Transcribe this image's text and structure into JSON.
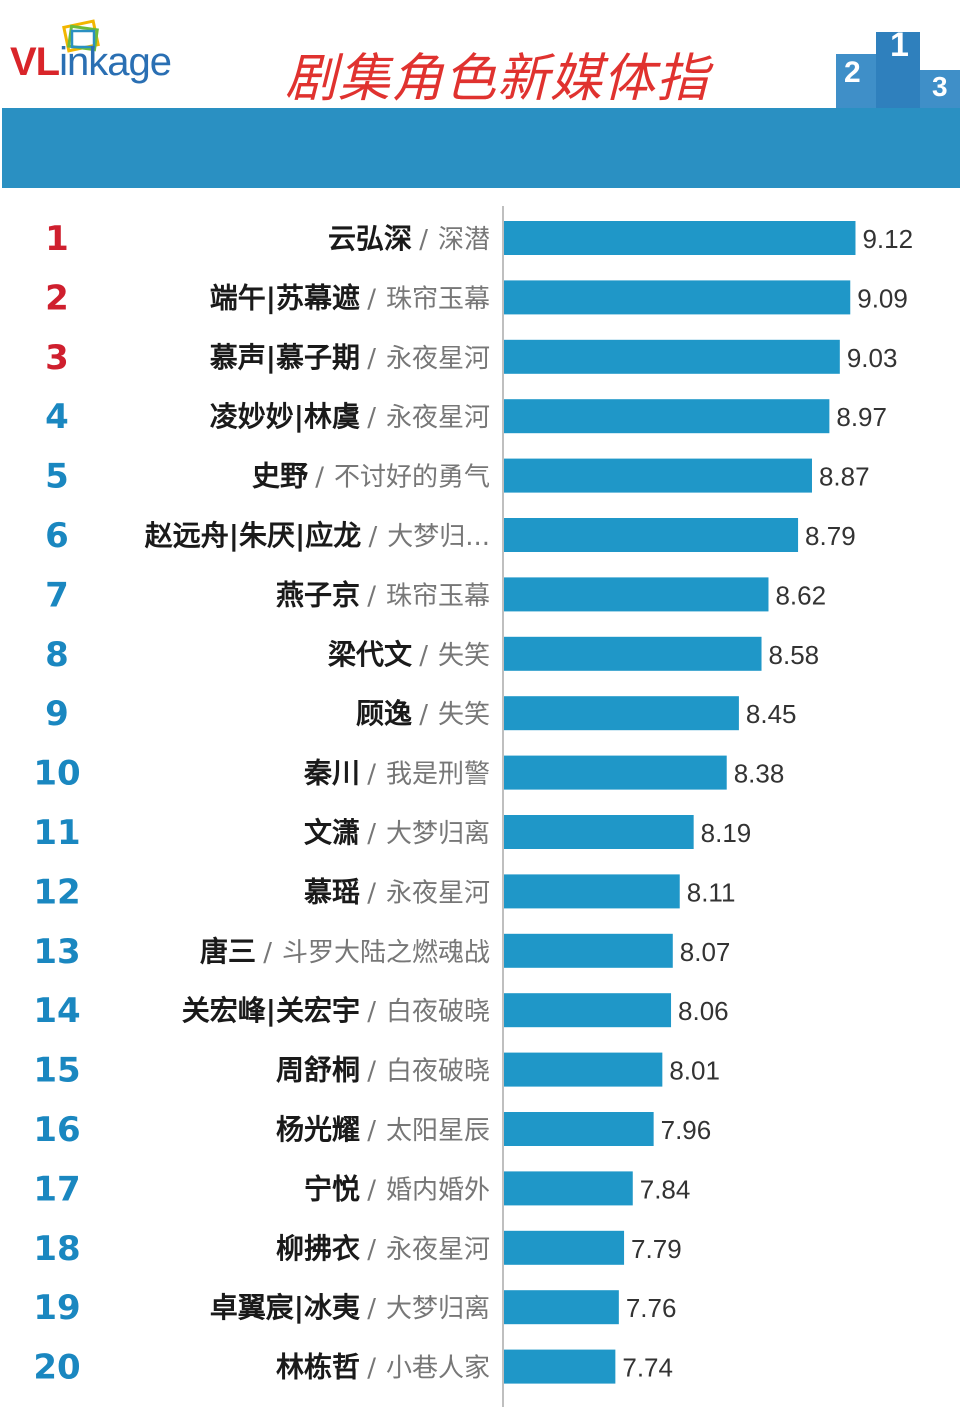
{
  "brand": {
    "logo_prefix": "VL",
    "logo_rest": "inkage"
  },
  "title": "剧集角色新媒体指",
  "colors": {
    "bar": "#1f97c8",
    "banner": "#2a90c2",
    "rank_top3": "#cf1f2e",
    "rank_other": "#1a87c0",
    "title": "#e0322f"
  },
  "chart_data": {
    "type": "bar",
    "orientation": "horizontal",
    "xlim": [
      7.1,
      9.3
    ],
    "rows": [
      {
        "rank": "1",
        "name": "云弘深",
        "show": "深潜",
        "value": 9.12,
        "value_label": "9.12"
      },
      {
        "rank": "2",
        "name": "端午|苏幕遮",
        "show": "珠帘玉幕",
        "value": 9.09,
        "value_label": "9.09"
      },
      {
        "rank": "3",
        "name": "慕声|慕子期",
        "show": "永夜星河",
        "value": 9.03,
        "value_label": "9.03"
      },
      {
        "rank": "4",
        "name": "凌妙妙|林虞",
        "show": "永夜星河",
        "value": 8.97,
        "value_label": "8.97"
      },
      {
        "rank": "5",
        "name": "史野",
        "show": "不讨好的勇气",
        "value": 8.87,
        "value_label": "8.87"
      },
      {
        "rank": "6",
        "name": "赵远舟|朱厌|应龙",
        "show": "大梦归...",
        "value": 8.79,
        "value_label": "8.79"
      },
      {
        "rank": "7",
        "name": "燕子京",
        "show": "珠帘玉幕",
        "value": 8.62,
        "value_label": "8.62"
      },
      {
        "rank": "8",
        "name": "梁代文",
        "show": "失笑",
        "value": 8.58,
        "value_label": "8.58"
      },
      {
        "rank": "9",
        "name": "顾逸",
        "show": "失笑",
        "value": 8.45,
        "value_label": "8.45"
      },
      {
        "rank": "10",
        "name": "秦川",
        "show": "我是刑警",
        "value": 8.38,
        "value_label": "8.38"
      },
      {
        "rank": "11",
        "name": "文潇",
        "show": "大梦归离",
        "value": 8.19,
        "value_label": "8.19"
      },
      {
        "rank": "12",
        "name": "慕瑶",
        "show": "永夜星河",
        "value": 8.11,
        "value_label": "8.11"
      },
      {
        "rank": "13",
        "name": "唐三",
        "show": "斗罗大陆之燃魂战",
        "value": 8.07,
        "value_label": "8.07"
      },
      {
        "rank": "14",
        "name": "关宏峰|关宏宇",
        "show": "白夜破晓",
        "value": 8.06,
        "value_label": "8.06"
      },
      {
        "rank": "15",
        "name": "周舒桐",
        "show": "白夜破晓",
        "value": 8.01,
        "value_label": "8.01"
      },
      {
        "rank": "16",
        "name": "杨光耀",
        "show": "太阳星辰",
        "value": 7.96,
        "value_label": "7.96"
      },
      {
        "rank": "17",
        "name": "宁悦",
        "show": "婚内婚外",
        "value": 7.84,
        "value_label": "7.84"
      },
      {
        "rank": "18",
        "name": "柳拂衣",
        "show": "永夜星河",
        "value": 7.79,
        "value_label": "7.79"
      },
      {
        "rank": "19",
        "name": "卓翼宸|冰夷",
        "show": "大梦归离",
        "value": 7.76,
        "value_label": "7.76"
      },
      {
        "rank": "20",
        "name": "林栋哲",
        "show": "小巷人家",
        "value": 7.74,
        "value_label": "7.74"
      }
    ]
  }
}
